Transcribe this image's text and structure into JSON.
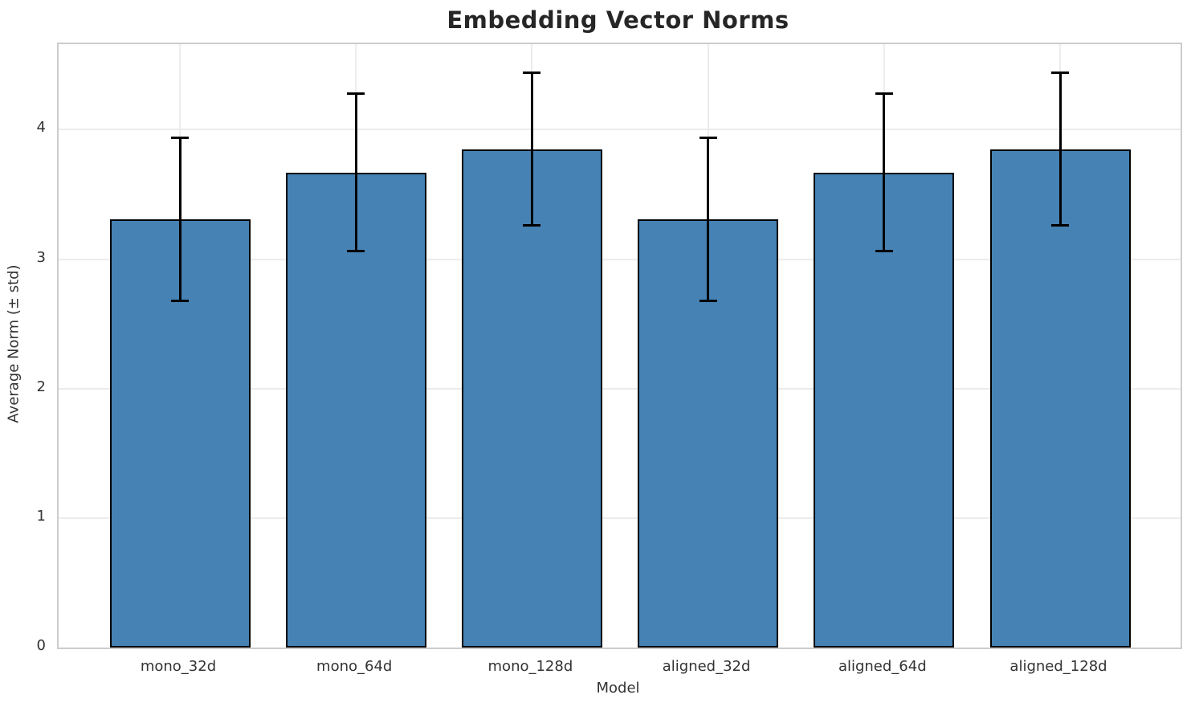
{
  "chart_data": {
    "type": "bar",
    "title": "Embedding Vector Norms",
    "xlabel": "Model",
    "ylabel": "Average Norm (± std)",
    "categories": [
      "mono_32d",
      "mono_64d",
      "mono_128d",
      "aligned_32d",
      "aligned_64d",
      "aligned_128d"
    ],
    "series": [
      {
        "name": "Average Norm",
        "values": [
          3.31,
          3.67,
          3.85,
          3.31,
          3.67,
          3.85
        ],
        "errors": [
          0.63,
          0.61,
          0.59,
          0.63,
          0.61,
          0.59
        ]
      }
    ],
    "error_bar_ranges": [
      {
        "low": 2.68,
        "high": 3.94
      },
      {
        "low": 3.07,
        "high": 4.28
      },
      {
        "low": 3.26,
        "high": 4.44
      },
      {
        "low": 2.68,
        "high": 3.94
      },
      {
        "low": 3.07,
        "high": 4.28
      },
      {
        "low": 3.26,
        "high": 4.44
      }
    ],
    "ylim": [
      0,
      4.66
    ],
    "yticks": [
      "0",
      "1",
      "2",
      "3",
      "4"
    ],
    "grid": "horizontal gridlines at integer y values, vertical gridlines at category centers",
    "legend": "none"
  },
  "colors": {
    "bar_fill": "#4682B4",
    "bar_edge": "#000000",
    "error_bar": "#000000",
    "grid_line": "#ececec",
    "spine": "#cccccc",
    "title_text": "#262626",
    "tick_text": "#333333",
    "background": "#ffffff"
  }
}
